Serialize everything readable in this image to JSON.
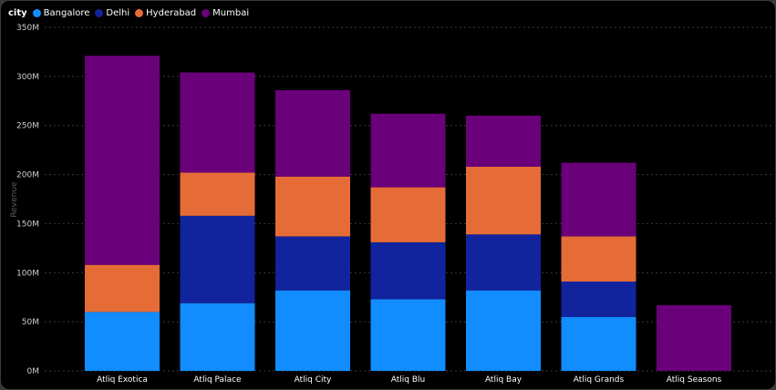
{
  "chart_data": {
    "type": "bar",
    "stacked": true,
    "legend_title": "city",
    "legend_position": "top-left",
    "ylabel": "Revenue",
    "ylim": [
      0,
      350000000
    ],
    "yticks": [
      0,
      50000000,
      100000000,
      150000000,
      200000000,
      250000000,
      300000000,
      350000000
    ],
    "ytick_labels": [
      "0M",
      "50M",
      "100M",
      "150M",
      "200M",
      "250M",
      "300M",
      "350M"
    ],
    "grid": true,
    "categories": [
      "Atliq Exotica",
      "Atliq Palace",
      "Atliq City",
      "Atliq Blu",
      "Atliq Bay",
      "Atliq Grands",
      "Atliq Seasons"
    ],
    "series": [
      {
        "name": "Bangalore",
        "color": "#118dff",
        "values": [
          60000000,
          69000000,
          82000000,
          73000000,
          82000000,
          55000000,
          0
        ]
      },
      {
        "name": "Delhi",
        "color": "#12239e",
        "values": [
          0,
          89000000,
          55000000,
          58000000,
          57000000,
          36000000,
          0
        ]
      },
      {
        "name": "Hyderabad",
        "color": "#e66c37",
        "values": [
          48000000,
          44000000,
          61000000,
          56000000,
          69000000,
          46000000,
          0
        ]
      },
      {
        "name": "Mumbai",
        "color": "#6b007b",
        "values": [
          213000000,
          102000000,
          88000000,
          75000000,
          52000000,
          75000000,
          67000000
        ]
      }
    ]
  }
}
